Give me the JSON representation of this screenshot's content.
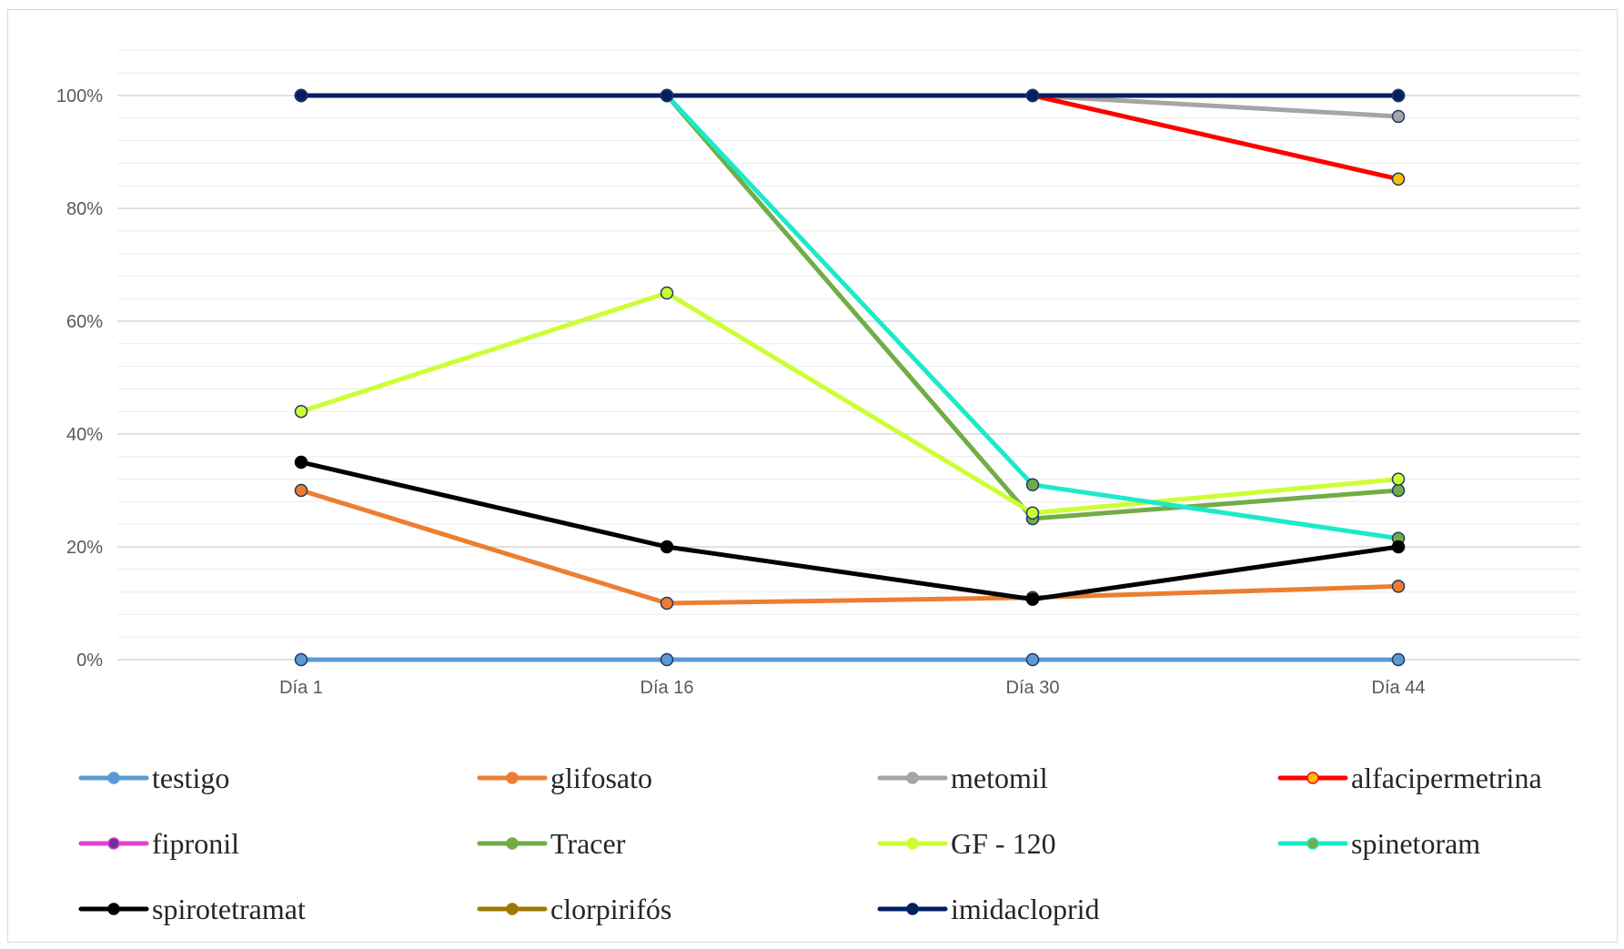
{
  "chart_data": {
    "type": "line",
    "title": "",
    "xlabel": "",
    "ylabel": "",
    "categories": [
      "Día 1",
      "Día 16",
      "Día 30",
      "Día 44"
    ],
    "ylim": [
      0,
      1.0
    ],
    "yticks": [
      0,
      0.2,
      0.4,
      0.6,
      0.8,
      1.0
    ],
    "ytick_labels": [
      "0%",
      "20%",
      "40%",
      "60%",
      "80%",
      "100%"
    ],
    "grid": true,
    "legend_position": "bottom",
    "series": [
      {
        "name": "testigo",
        "color": "#5b9bd5",
        "marker_fill": "#5b9bd5",
        "values": [
          0,
          0,
          0,
          0
        ]
      },
      {
        "name": "glifosato",
        "color": "#ed7d31",
        "marker_fill": "#ed7d31",
        "values": [
          0.3,
          0.1,
          0.11,
          0.13
        ]
      },
      {
        "name": "metomil",
        "color": "#a5a5a5",
        "marker_fill": "#a5a5a5",
        "values": [
          1.0,
          1.0,
          1.0,
          0.963
        ]
      },
      {
        "name": "alfacipermetrina",
        "color": "#ff0000",
        "marker_fill": "#ffc000",
        "values": [
          1.0,
          1.0,
          1.0,
          0.852
        ]
      },
      {
        "name": "fipronil",
        "color": "#e040d0",
        "marker_fill": "#7030a0",
        "values": [
          1.0,
          1.0,
          1.0,
          1.0
        ]
      },
      {
        "name": "Tracer",
        "color": "#70ad47",
        "marker_fill": "#70ad47",
        "values": [
          1.0,
          1.0,
          0.25,
          0.3
        ]
      },
      {
        "name": "GF - 120",
        "color": "#ccff33",
        "marker_fill": "#ccff33",
        "values": [
          0.44,
          0.65,
          0.26,
          0.32
        ]
      },
      {
        "name": "spinetoram",
        "color": "#1de9c9",
        "marker_fill": "#70ad47",
        "values": [
          1.0,
          1.0,
          0.31,
          0.215
        ]
      },
      {
        "name": "spirotetramat",
        "color": "#000000",
        "marker_fill": "#000000",
        "values": [
          0.35,
          0.2,
          0.107,
          0.2
        ]
      },
      {
        "name": "clorpirifós",
        "color": "#9c7a00",
        "marker_fill": "#9c7a00",
        "values": [
          1.0,
          1.0,
          1.0,
          1.0
        ]
      },
      {
        "name": "imidacloprid",
        "color": "#002060",
        "marker_fill": "#002060",
        "values": [
          1.0,
          1.0,
          1.0,
          1.0
        ]
      }
    ]
  }
}
